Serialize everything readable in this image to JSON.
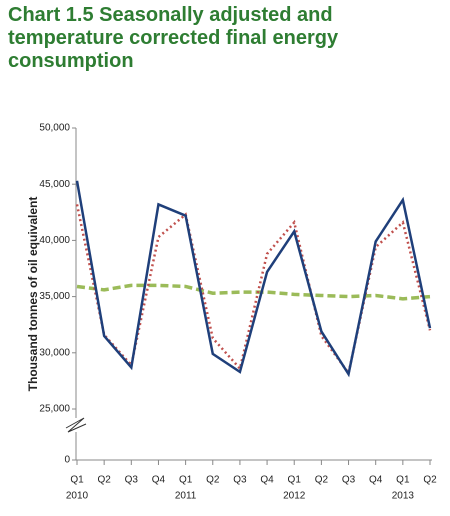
{
  "chart_data": {
    "type": "line",
    "title": "Chart 1.5 Seasonally adjusted and temperature corrected final energy consumption",
    "y_label": "Thousand tonnes of oil equivalent",
    "categories": [
      "Q1",
      "Q2",
      "Q3",
      "Q4",
      "Q1",
      "Q2",
      "Q3",
      "Q4",
      "Q1",
      "Q2",
      "Q3",
      "Q4",
      "Q1",
      "Q2"
    ],
    "year_labels": [
      "2010",
      null,
      null,
      null,
      "2011",
      null,
      null,
      null,
      "2012",
      null,
      null,
      null,
      "2013",
      null
    ],
    "series": [
      {
        "color": "#1f3f7a",
        "style": "solid",
        "values": [
          45300,
          31500,
          28700,
          43200,
          42200,
          29900,
          28300,
          37200,
          40800,
          31900,
          28100,
          39900,
          43600,
          32200
        ]
      },
      {
        "color": "#c0504d",
        "style": "dotted",
        "values": [
          43200,
          31600,
          28900,
          40300,
          42300,
          31300,
          28600,
          38800,
          41600,
          31500,
          28200,
          39400,
          41600,
          32000
        ]
      },
      {
        "color": "#9bbb59",
        "style": "dashed",
        "values": [
          35900,
          35600,
          36000,
          36000,
          35900,
          35300,
          35400,
          35400,
          35200,
          35100,
          35000,
          35100,
          34800,
          35000
        ]
      }
    ],
    "ylim": [
      25000,
      50000
    ],
    "y_break": true,
    "yticks": [
      0,
      {
        "value": 25000,
        "label": "25,000"
      },
      {
        "value": 30000,
        "label": "30,000"
      },
      {
        "value": 35000,
        "label": "35,000"
      },
      {
        "value": 40000,
        "label": "40,000"
      },
      {
        "value": 45000,
        "label": "45,000"
      },
      {
        "value": 50000,
        "label": "50,000"
      }
    ]
  }
}
